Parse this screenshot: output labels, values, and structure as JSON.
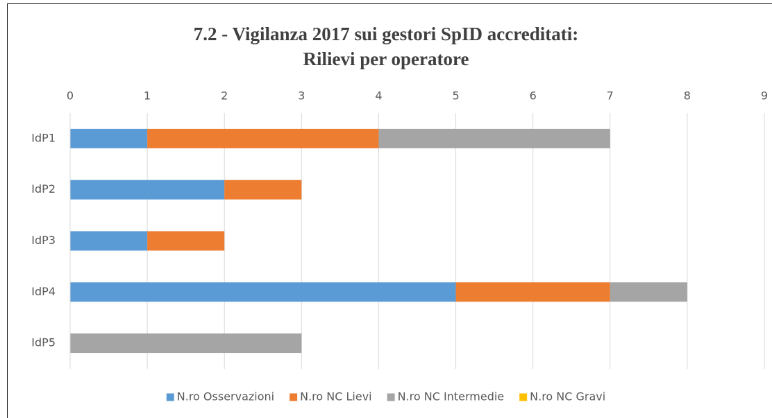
{
  "chart_data": {
    "type": "stacked-barh",
    "title": [
      "7.2 - Vigilanza 2017 sui gestori SpID accreditati:",
      "Rilievi per operatore"
    ],
    "categories": [
      "IdP1",
      "IdP2",
      "IdP3",
      "IdP4",
      "IdP5"
    ],
    "series": [
      {
        "name": "N.ro Osservazioni",
        "color": "#5b9bd5",
        "values": [
          1,
          2,
          1,
          5,
          0
        ]
      },
      {
        "name": "N.ro NC Lievi",
        "color": "#ed7d31",
        "values": [
          3,
          1,
          1,
          2,
          0
        ]
      },
      {
        "name": "N.ro NC Intermedie",
        "color": "#a5a5a5",
        "values": [
          3,
          0,
          0,
          1,
          3
        ]
      },
      {
        "name": "N.ro NC Gravi",
        "color": "#ffc000",
        "values": [
          0,
          0,
          0,
          0,
          0
        ]
      }
    ],
    "xlim": [
      0,
      9
    ],
    "xticks": [
      0,
      1,
      2,
      3,
      4,
      5,
      6,
      7,
      8,
      9
    ],
    "grid": true,
    "legend": "bottom"
  }
}
